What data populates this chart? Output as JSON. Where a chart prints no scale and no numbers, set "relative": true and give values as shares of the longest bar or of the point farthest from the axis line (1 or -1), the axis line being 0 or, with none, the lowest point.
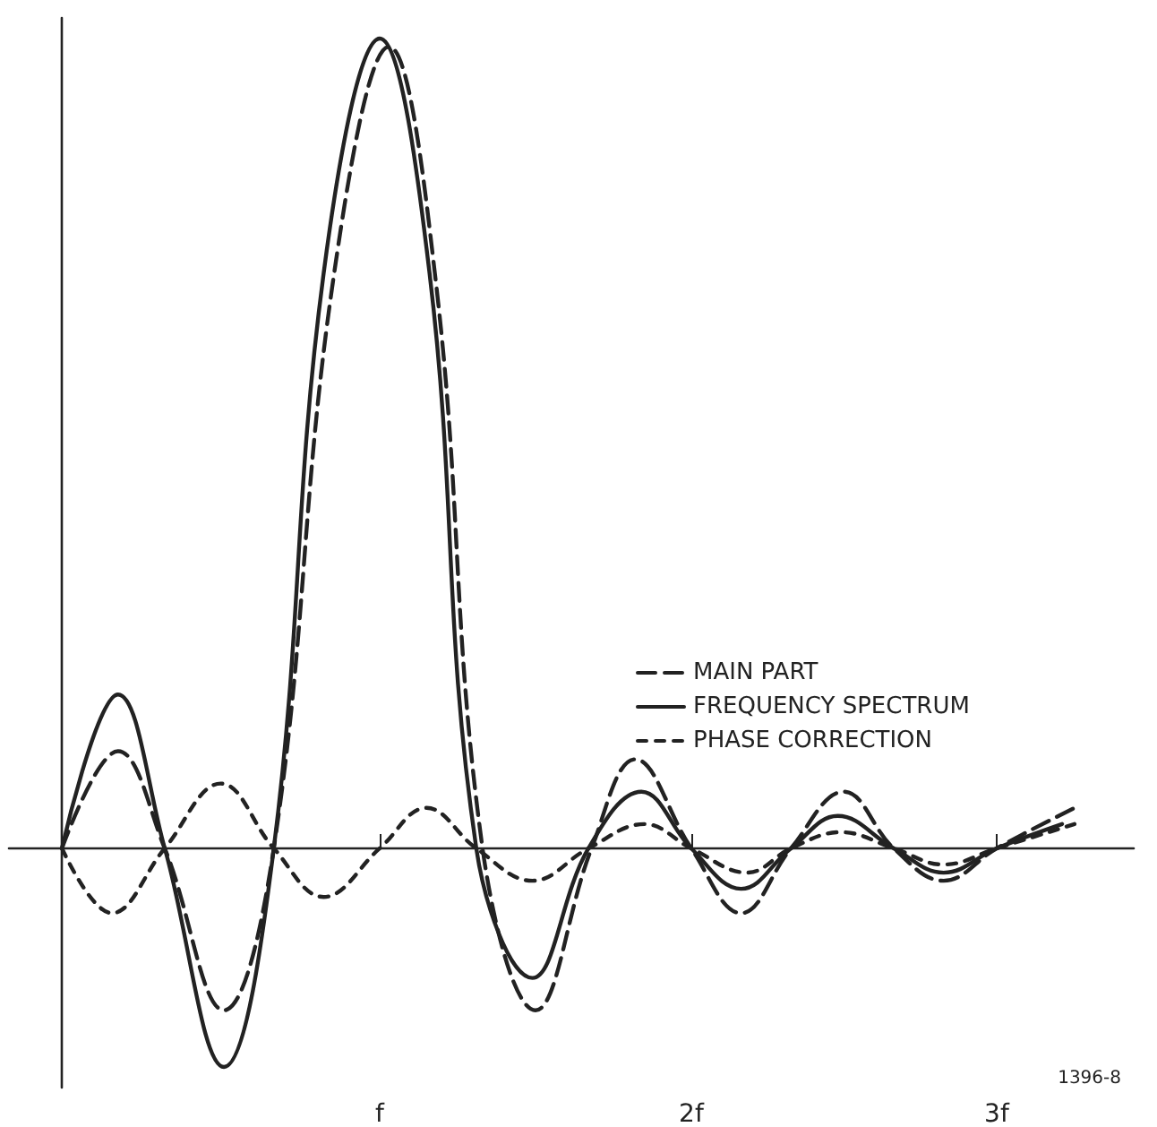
{
  "chart_data": {
    "type": "line",
    "relative": true,
    "legend": "right",
    "grid": false,
    "marker": "none",
    "xlim": [
      -0.17,
      3.44
    ],
    "xticks": [
      {
        "value": 1.02,
        "label": "f"
      },
      {
        "value": 2.02,
        "label": "2f"
      },
      {
        "value": 3.0,
        "label": "3f"
      }
    ],
    "tick_labels": "x",
    "series": [
      {
        "name": "MAIN PART",
        "color": "#222222",
        "line_style": "dashed",
        "x": [
          0,
          0.18,
          0.33,
          0.52,
          0.68,
          0.87,
          1.05,
          1.2,
          1.35,
          1.52,
          1.7,
          1.84,
          2.02,
          2.18,
          2.34,
          2.51,
          2.67,
          2.83,
          3.0,
          3.25
        ],
        "values": [
          0,
          0.12,
          0,
          -0.2,
          0,
          0.7,
          0.99,
          0.7,
          0,
          -0.2,
          0,
          0.11,
          0,
          -0.08,
          0,
          0.07,
          0,
          -0.04,
          0,
          0.05
        ]
      },
      {
        "name": "FREQUENCY SPECTRUM",
        "color": "#222222",
        "line_style": "solid",
        "x": [
          0,
          0.18,
          0.33,
          0.52,
          0.68,
          0.84,
          1.02,
          1.18,
          1.33,
          1.51,
          1.69,
          1.86,
          2.02,
          2.18,
          2.34,
          2.49,
          2.67,
          2.83,
          3.0,
          3.21
        ],
        "values": [
          0,
          0.19,
          0,
          -0.27,
          0,
          0.71,
          1.0,
          0.71,
          0,
          -0.16,
          0,
          0.07,
          0,
          -0.05,
          0,
          0.04,
          0,
          -0.03,
          0,
          0.03
        ]
      },
      {
        "name": "PHASE CORRECTION",
        "color": "#222222",
        "line_style": "dotted",
        "x": [
          0,
          0.16,
          0.33,
          0.51,
          0.68,
          0.84,
          1.02,
          1.17,
          1.33,
          1.51,
          1.69,
          1.87,
          2.02,
          2.2,
          2.34,
          2.5,
          2.67,
          2.83,
          3.0,
          3.25
        ],
        "values": [
          0,
          -0.08,
          0,
          0.08,
          0,
          -0.06,
          0,
          0.05,
          0,
          -0.04,
          0,
          0.03,
          0,
          -0.03,
          0,
          0.02,
          0,
          -0.02,
          0,
          0.03
        ]
      }
    ],
    "annotations": [
      "1396-8"
    ]
  }
}
